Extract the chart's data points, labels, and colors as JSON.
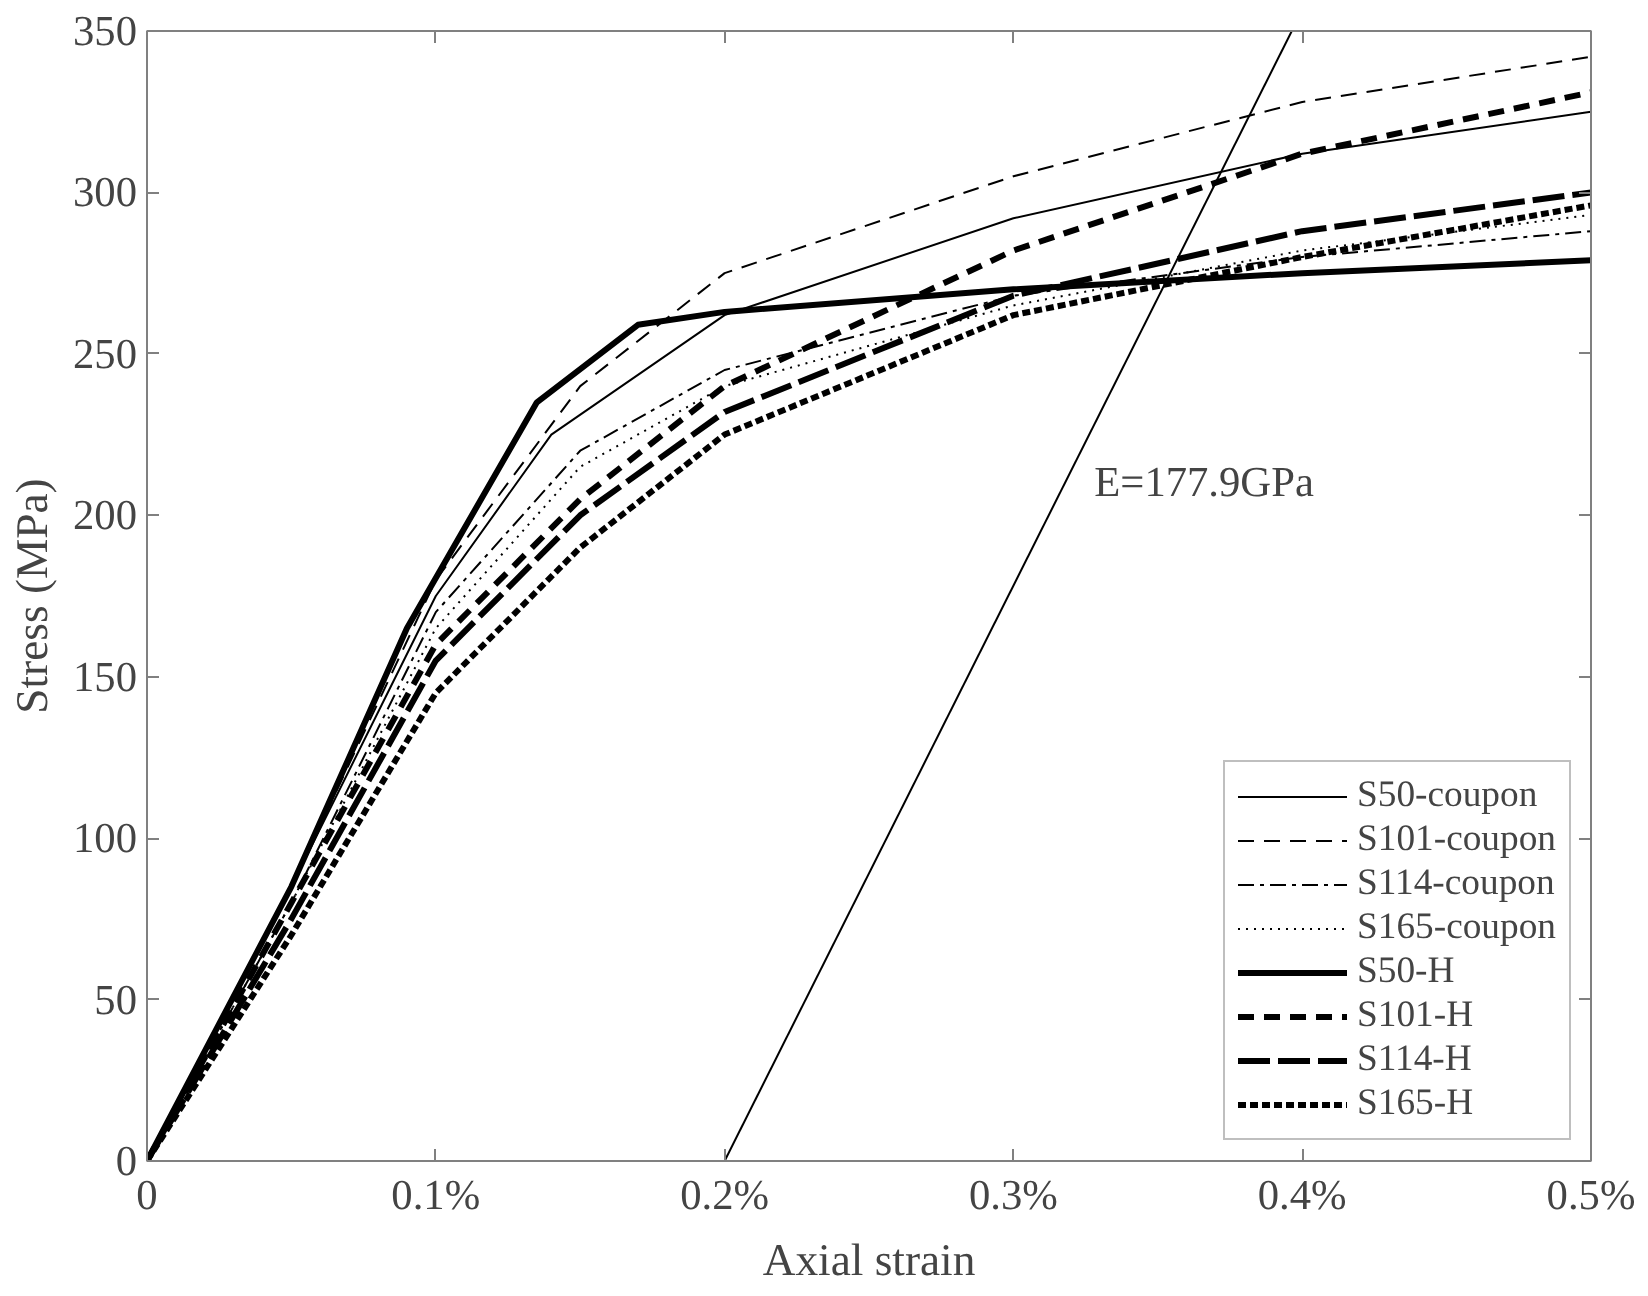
{
  "chart_data": {
    "type": "line",
    "xlabel": "Axial strain",
    "ylabel": "Stress (MPa)",
    "xlim": [
      0,
      0.5
    ],
    "xticks": [
      0,
      {
        "value": 0.1,
        "label": "0.1%"
      },
      {
        "value": 0.2,
        "label": "0.2%"
      },
      {
        "value": 0.3,
        "label": "0.3%"
      },
      {
        "value": 0.4,
        "label": "0.4%"
      },
      {
        "value": 0.5,
        "label": "0.5%"
      }
    ],
    "ylim": [
      0,
      350
    ],
    "yticks": [
      0,
      50,
      100,
      150,
      200,
      250,
      300,
      350
    ],
    "grid": false,
    "legend": "bottom right",
    "annotations": [
      "E=177.9GPa"
    ],
    "series": [
      {
        "name": "S50-coupon",
        "color": "#000000",
        "line_style": "solid",
        "x": [
          0,
          0.05,
          0.1,
          0.14,
          0.2,
          0.3,
          0.4,
          0.5
        ],
        "values": [
          0,
          85,
          175,
          225,
          262,
          292,
          312,
          325
        ]
      },
      {
        "name": "S101-coupon",
        "color": "#000000",
        "line_style": "dashed",
        "x": [
          0,
          0.05,
          0.1,
          0.15,
          0.2,
          0.3,
          0.4,
          0.5
        ],
        "values": [
          0,
          85,
          180,
          240,
          275,
          305,
          328,
          342
        ]
      },
      {
        "name": "S114-coupon",
        "color": "#000000",
        "line_style": "dashdot",
        "x": [
          0,
          0.05,
          0.1,
          0.15,
          0.2,
          0.3,
          0.4,
          0.5
        ],
        "values": [
          0,
          80,
          170,
          220,
          245,
          268,
          280,
          288
        ]
      },
      {
        "name": "S165-coupon",
        "color": "#000000",
        "line_style": "dotted",
        "x": [
          0,
          0.05,
          0.1,
          0.15,
          0.2,
          0.3,
          0.4,
          0.5
        ],
        "values": [
          0,
          80,
          165,
          215,
          240,
          265,
          282,
          293
        ]
      },
      {
        "name": "S50-H",
        "color": "#000000",
        "line_style": "solid",
        "x": [
          0,
          0.05,
          0.09,
          0.135,
          0.17,
          0.2,
          0.3,
          0.4,
          0.5
        ],
        "values": [
          0,
          85,
          165,
          235,
          259,
          263,
          270,
          275,
          279
        ]
      },
      {
        "name": "S101-H",
        "color": "#000000",
        "line_style": "dashed",
        "x": [
          0,
          0.05,
          0.1,
          0.15,
          0.2,
          0.3,
          0.4,
          0.5
        ],
        "values": [
          0,
          80,
          160,
          205,
          240,
          282,
          312,
          331
        ]
      },
      {
        "name": "S114-H",
        "color": "#000000",
        "line_style": "dashed",
        "x": [
          0,
          0.05,
          0.1,
          0.15,
          0.2,
          0.3,
          0.4,
          0.5
        ],
        "values": [
          0,
          75,
          155,
          200,
          232,
          268,
          288,
          300
        ]
      },
      {
        "name": "S165-H",
        "color": "#000000",
        "line_style": "dotted",
        "x": [
          0,
          0.05,
          0.1,
          0.15,
          0.2,
          0.3,
          0.4,
          0.5
        ],
        "values": [
          0,
          70,
          145,
          190,
          225,
          262,
          280,
          296
        ]
      },
      {
        "color": "#000000",
        "line_style": "solid",
        "x": [
          0.2,
          0.3964
        ],
        "values": [
          0,
          350
        ]
      }
    ]
  }
}
